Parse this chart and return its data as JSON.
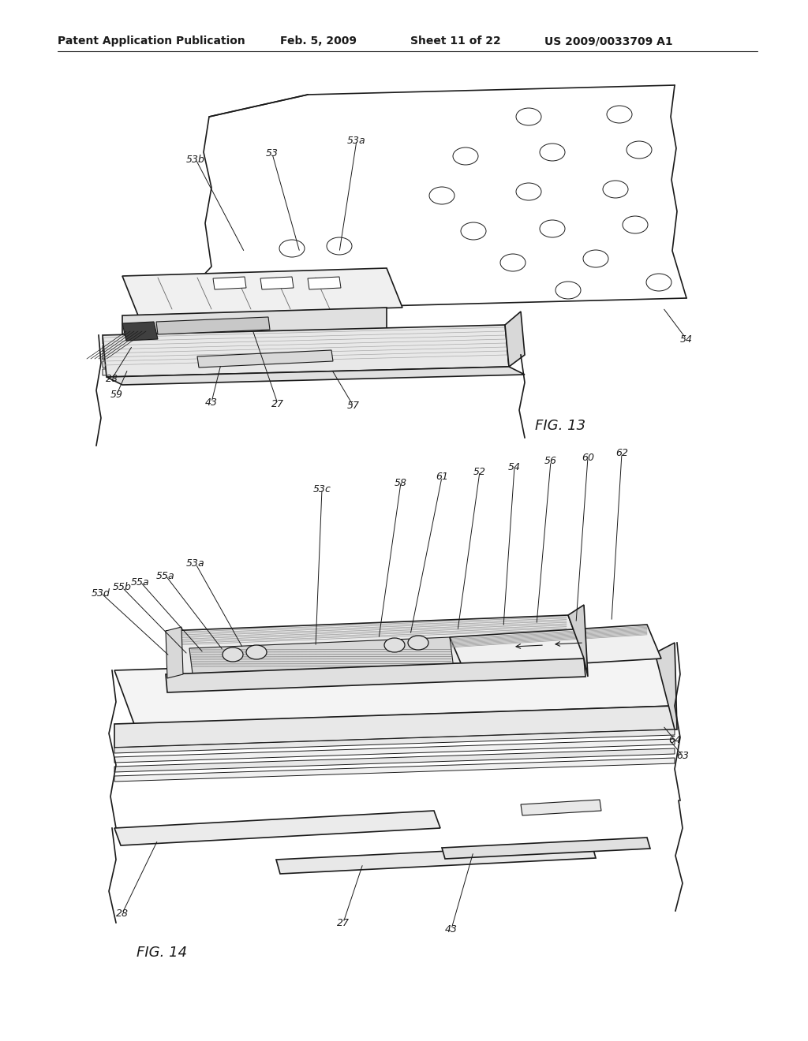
{
  "bg_color": "#ffffff",
  "line_color": "#1a1a1a",
  "fig_width": 10.24,
  "fig_height": 13.2,
  "header_text": "Patent Application Publication",
  "header_date": "Feb. 5, 2009",
  "header_sheet": "Sheet 11 of 22",
  "header_patent": "US 2009/0033709 A1",
  "fig13_label": "FIG. 13",
  "fig14_label": "FIG. 14",
  "font_size_header": 10,
  "font_size_label": 9,
  "font_size_fig": 13
}
